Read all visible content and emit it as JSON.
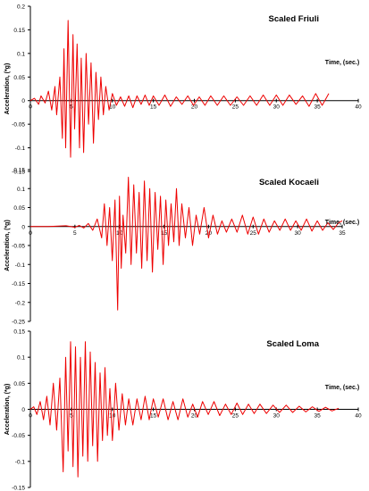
{
  "colors": {
    "series": "#ee0000",
    "axis": "#000000",
    "text": "#000000"
  },
  "chart_data": [
    {
      "type": "line",
      "title": "Scaled Friuli",
      "xlabel": "Time, (sec.)",
      "ylabel": "Acceleration, (*g)",
      "xlim": [
        0,
        40
      ],
      "ylim": [
        -0.15,
        0.2
      ],
      "x_ticks": [
        0,
        5,
        10,
        15,
        20,
        25,
        30,
        35,
        40
      ],
      "y_ticks": [
        -0.15,
        -0.1,
        -0.05,
        0,
        0.05,
        0.1,
        0.15,
        0.2
      ],
      "legend": "none",
      "grid": false,
      "series": [
        {
          "x": [
            0,
            0.5,
            1.0,
            1.3,
            1.8,
            2.2,
            2.6,
            3.0,
            3.2,
            3.6,
            3.9,
            4.1,
            4.3,
            4.6,
            4.9,
            5.2,
            5.4,
            5.7,
            6.0,
            6.2,
            6.5,
            6.8,
            7.1,
            7.4,
            7.7,
            8.0,
            8.3,
            8.6,
            8.9,
            9.2,
            9.6,
            10.0,
            10.5,
            11.0,
            11.5,
            12.0,
            12.5,
            13.0,
            13.5,
            14.0,
            14.5,
            15.0,
            15.7,
            16.4,
            17.1,
            17.8,
            18.5,
            19.2,
            19.9,
            20.6,
            21.3,
            22.0,
            22.8,
            23.6,
            24.4,
            25.2,
            26.0,
            26.8,
            27.6,
            28.4,
            29.2,
            30.0,
            30.8,
            31.6,
            32.4,
            33.2,
            34.0,
            34.8,
            35.6,
            36.4
          ],
          "y": [
            0,
            0.005,
            -0.008,
            0.01,
            -0.005,
            0.02,
            -0.02,
            0.03,
            -0.03,
            0.05,
            -0.08,
            0.11,
            -0.1,
            0.17,
            -0.12,
            0.14,
            -0.06,
            0.12,
            -0.1,
            0.09,
            -0.11,
            0.1,
            -0.05,
            0.08,
            -0.09,
            0.06,
            -0.04,
            0.05,
            -0.03,
            0.03,
            -0.02,
            0.015,
            -0.01,
            0.008,
            -0.012,
            0.01,
            -0.015,
            0.01,
            -0.008,
            0.012,
            -0.01,
            0.01,
            -0.01,
            0.012,
            -0.012,
            0.008,
            -0.008,
            0.01,
            -0.01,
            0.008,
            -0.01,
            0.01,
            -0.01,
            0.01,
            -0.01,
            0.008,
            -0.01,
            0.01,
            -0.01,
            0.012,
            -0.01,
            0.012,
            -0.01,
            0.012,
            -0.008,
            0.01,
            -0.012,
            0.015,
            -0.01,
            0.015
          ]
        }
      ]
    },
    {
      "type": "line",
      "title": "Scaled Kocaeli",
      "xlabel": "Time, (sec.)",
      "ylabel": "Acceleration, (*g)",
      "xlim": [
        0,
        35
      ],
      "ylim": [
        -0.25,
        0.15
      ],
      "x_ticks": [
        0,
        5,
        10,
        15,
        20,
        25,
        30,
        35
      ],
      "y_ticks": [
        -0.25,
        -0.2,
        -0.15,
        -0.1,
        -0.05,
        0,
        0.05,
        0.1,
        0.15
      ],
      "legend": "none",
      "grid": false,
      "series": [
        {
          "x": [
            0,
            2.0,
            4.0,
            5.0,
            5.5,
            6.0,
            6.5,
            7.0,
            7.5,
            8.0,
            8.3,
            8.6,
            8.9,
            9.2,
            9.5,
            9.8,
            10.0,
            10.2,
            10.4,
            10.7,
            11.0,
            11.3,
            11.6,
            11.9,
            12.2,
            12.5,
            12.8,
            13.1,
            13.4,
            13.7,
            14.0,
            14.3,
            14.6,
            14.9,
            15.2,
            15.5,
            15.8,
            16.1,
            16.4,
            16.7,
            17.0,
            17.4,
            17.8,
            18.2,
            18.6,
            19.0,
            19.5,
            20.0,
            20.5,
            21.0,
            21.5,
            22.0,
            22.6,
            23.2,
            23.8,
            24.4,
            25.0,
            25.6,
            26.2,
            26.8,
            27.4,
            28.0,
            28.6,
            29.2,
            29.8,
            30.4,
            31.0,
            31.6,
            32.2,
            32.8,
            33.4,
            34.0,
            34.6,
            35.0
          ],
          "y": [
            0,
            0.0,
            0.002,
            -0.002,
            0.003,
            -0.004,
            0.008,
            -0.01,
            0.02,
            -0.03,
            0.06,
            -0.05,
            0.05,
            -0.09,
            0.07,
            -0.22,
            0.08,
            -0.11,
            0.03,
            -0.07,
            0.13,
            -0.1,
            0.11,
            -0.07,
            0.09,
            -0.11,
            0.12,
            -0.09,
            0.1,
            -0.12,
            0.09,
            -0.06,
            0.08,
            -0.1,
            0.07,
            -0.05,
            0.06,
            -0.04,
            0.1,
            -0.05,
            0.06,
            -0.03,
            0.05,
            -0.05,
            0.03,
            -0.02,
            0.05,
            -0.03,
            0.03,
            -0.02,
            0.015,
            -0.015,
            0.02,
            -0.015,
            0.03,
            -0.02,
            0.025,
            -0.02,
            0.02,
            -0.015,
            0.015,
            -0.01,
            0.02,
            -0.01,
            0.015,
            -0.01,
            0.02,
            -0.012,
            0.015,
            -0.01,
            0.01,
            -0.008,
            0.01,
            0.015
          ]
        }
      ]
    },
    {
      "type": "line",
      "title": "Scaled Loma",
      "xlabel": "Time, (sec.)",
      "ylabel": "Acceleration, (*g)",
      "xlim": [
        0,
        40
      ],
      "ylim": [
        -0.15,
        0.15
      ],
      "x_ticks": [
        0,
        5,
        10,
        15,
        20,
        25,
        30,
        35,
        40
      ],
      "y_ticks": [
        -0.15,
        -0.1,
        -0.05,
        0,
        0.05,
        0.1,
        0.15
      ],
      "legend": "none",
      "grid": false,
      "series": [
        {
          "x": [
            0,
            0.4,
            0.8,
            1.2,
            1.6,
            2.0,
            2.4,
            2.8,
            3.2,
            3.6,
            4.0,
            4.3,
            4.6,
            4.9,
            5.2,
            5.5,
            5.8,
            6.1,
            6.4,
            6.7,
            7.0,
            7.3,
            7.6,
            7.9,
            8.2,
            8.5,
            8.8,
            9.1,
            9.4,
            9.7,
            10.0,
            10.4,
            10.8,
            11.2,
            11.6,
            12.0,
            12.5,
            13.0,
            13.5,
            14.0,
            14.5,
            15.0,
            15.6,
            16.2,
            16.8,
            17.4,
            18.0,
            18.6,
            19.2,
            19.8,
            20.4,
            21.0,
            21.7,
            22.4,
            23.1,
            23.8,
            24.5,
            25.2,
            25.9,
            26.6,
            27.3,
            28.0,
            28.8,
            29.6,
            30.4,
            31.2,
            32.0,
            32.8,
            33.6,
            34.4,
            35.2,
            36.0,
            36.8,
            37.6
          ],
          "y": [
            0,
            0.005,
            -0.01,
            0.015,
            -0.02,
            0.025,
            -0.03,
            0.05,
            -0.04,
            0.06,
            -0.12,
            0.1,
            -0.08,
            0.13,
            -0.11,
            0.12,
            -0.13,
            0.1,
            -0.09,
            0.13,
            -0.1,
            0.11,
            -0.07,
            0.09,
            -0.1,
            0.07,
            -0.06,
            0.08,
            -0.05,
            0.04,
            -0.06,
            0.05,
            -0.04,
            0.03,
            -0.03,
            0.02,
            -0.03,
            0.02,
            -0.02,
            0.025,
            -0.02,
            0.02,
            -0.015,
            0.02,
            -0.02,
            0.015,
            -0.02,
            0.02,
            -0.015,
            0.01,
            -0.015,
            0.015,
            -0.01,
            0.015,
            -0.012,
            0.01,
            -0.01,
            0.012,
            -0.01,
            0.01,
            -0.008,
            0.01,
            -0.008,
            0.008,
            -0.006,
            0.008,
            -0.006,
            0.006,
            -0.005,
            0.005,
            -0.004,
            0.004,
            -0.003,
            0.002
          ]
        }
      ]
    }
  ]
}
